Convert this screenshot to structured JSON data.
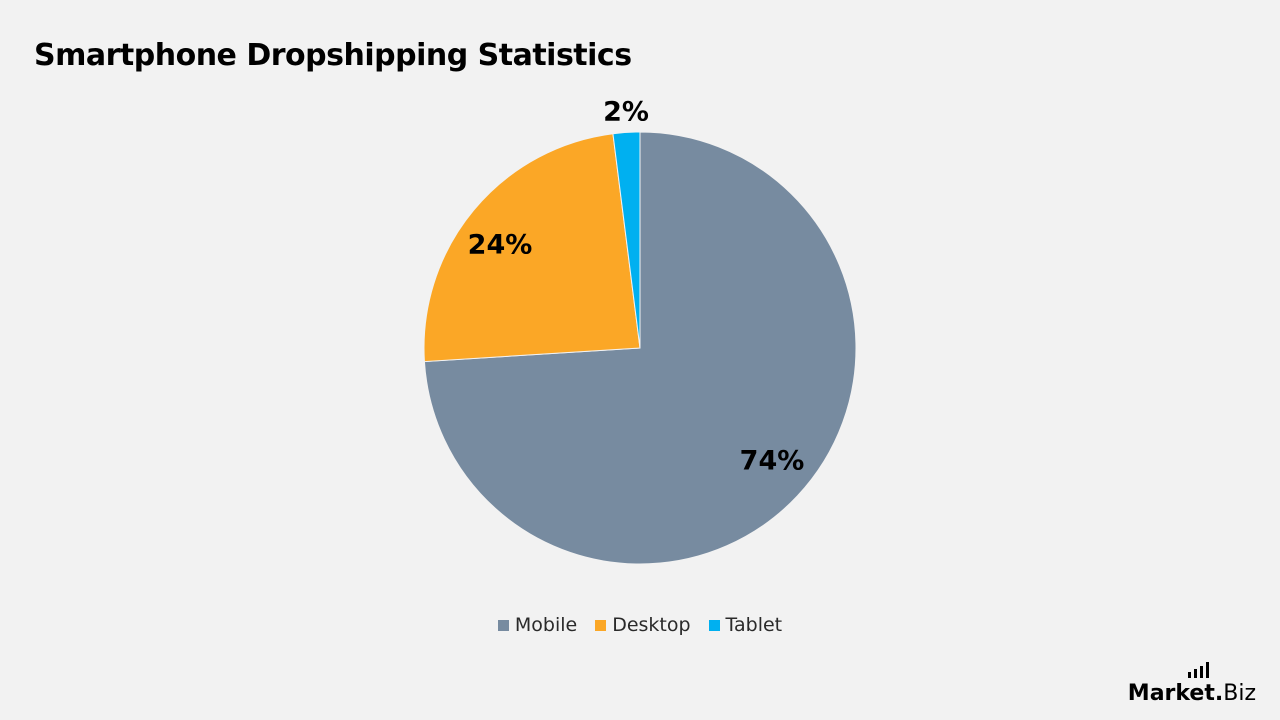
{
  "chart_data": {
    "type": "pie",
    "title": "Smartphone Dropshipping Statistics",
    "categories": [
      "Mobile",
      "Desktop",
      "Tablet"
    ],
    "values": [
      74,
      24,
      2
    ],
    "data_labels": [
      "74%",
      "24%",
      "2%"
    ],
    "colors": [
      "#778BA0",
      "#FBA726",
      "#00B0F0"
    ],
    "start": "12 o'clock",
    "direction": "clockwise",
    "legend": {
      "position": "bottom",
      "entries": [
        "Mobile",
        "Desktop",
        "Tablet"
      ]
    }
  },
  "branding": {
    "logo_main": "Market",
    "logo_suffix": "Biz"
  }
}
